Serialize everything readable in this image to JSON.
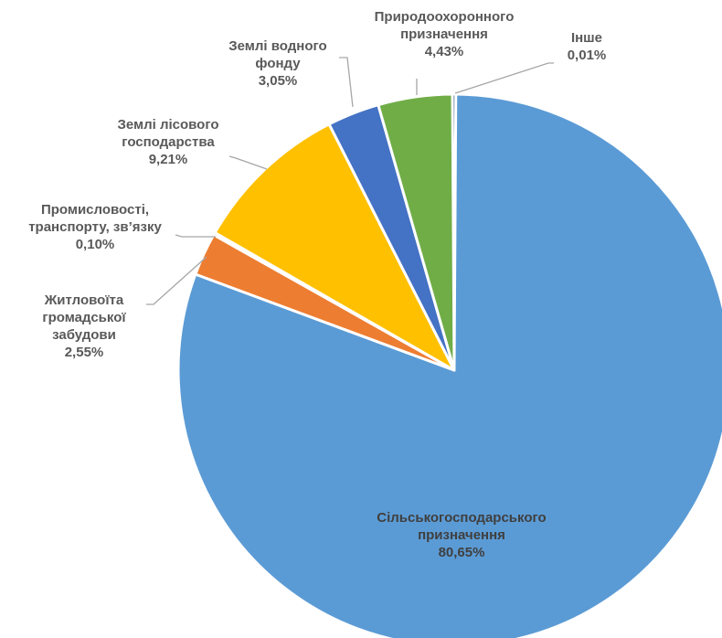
{
  "chart_data": {
    "type": "pie",
    "title": "",
    "series": [
      {
        "values": [
          80.65,
          2.55,
          0.1,
          9.21,
          3.05,
          4.43,
          0.01
        ]
      }
    ],
    "categories": [
      "Сільськогосподарського призначення",
      "Житлової та громадської забудови",
      "Промисловості, транспорту, зв’язку",
      "Землі лісового господарства",
      "Землі водного фонду",
      "Природоохоронного призначення",
      "Інше"
    ],
    "slices": [
      {
        "key": "agri",
        "lines": [
          "Сільськогосподарського",
          "призначення"
        ],
        "value": 80.65,
        "value_text": "80,65%",
        "color": "#5b9bd5"
      },
      {
        "key": "housing",
        "lines": [
          "Житловоїта",
          "громадської",
          "забудови"
        ],
        "value": 2.55,
        "value_text": "2,55%",
        "color": "#ed7d31"
      },
      {
        "key": "industry",
        "lines": [
          "Промисловості,",
          "транспорту, зв’язку"
        ],
        "value": 0.1,
        "value_text": "0,10%",
        "color": "#a5a5a5"
      },
      {
        "key": "forest",
        "lines": [
          "Землі лісового",
          "господарства"
        ],
        "value": 9.21,
        "value_text": "9,21%",
        "color": "#ffc000"
      },
      {
        "key": "water",
        "lines": [
          "Землі водного",
          "фонду"
        ],
        "value": 3.05,
        "value_text": "3,05%",
        "color": "#4472c4"
      },
      {
        "key": "nature",
        "lines": [
          "Природоохоронного",
          "призначення"
        ],
        "value": 4.43,
        "value_text": "4,43%",
        "color": "#70ad47"
      },
      {
        "key": "other",
        "lines": [
          "Інше"
        ],
        "value": 0.01,
        "value_text": "0,01%",
        "color": "#264478"
      }
    ],
    "legend": "none",
    "data_labels": "outside with leader lines"
  }
}
